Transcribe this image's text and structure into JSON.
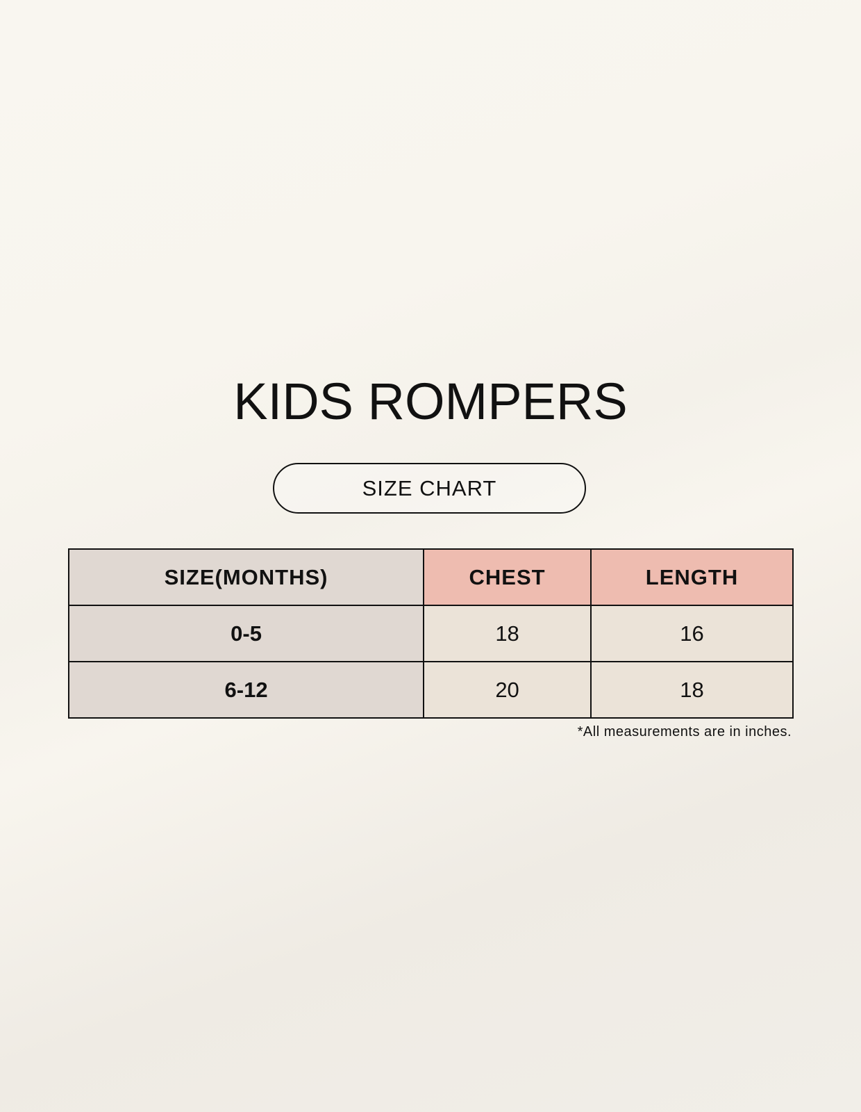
{
  "title": "KIDS ROMPERS",
  "subtitle": "SIZE CHART",
  "table": {
    "headers": [
      "SIZE(MONTHS)",
      "CHEST",
      "LENGTH"
    ],
    "rows": [
      [
        "0-5",
        "18",
        "16"
      ],
      [
        "6-12",
        "20",
        "18"
      ]
    ]
  },
  "footnote": "*All measurements are in inches.",
  "colors": {
    "header_accent": "#eebcb0",
    "size_column": "#e0d8d2",
    "value_cells": "#ebe3d8"
  }
}
